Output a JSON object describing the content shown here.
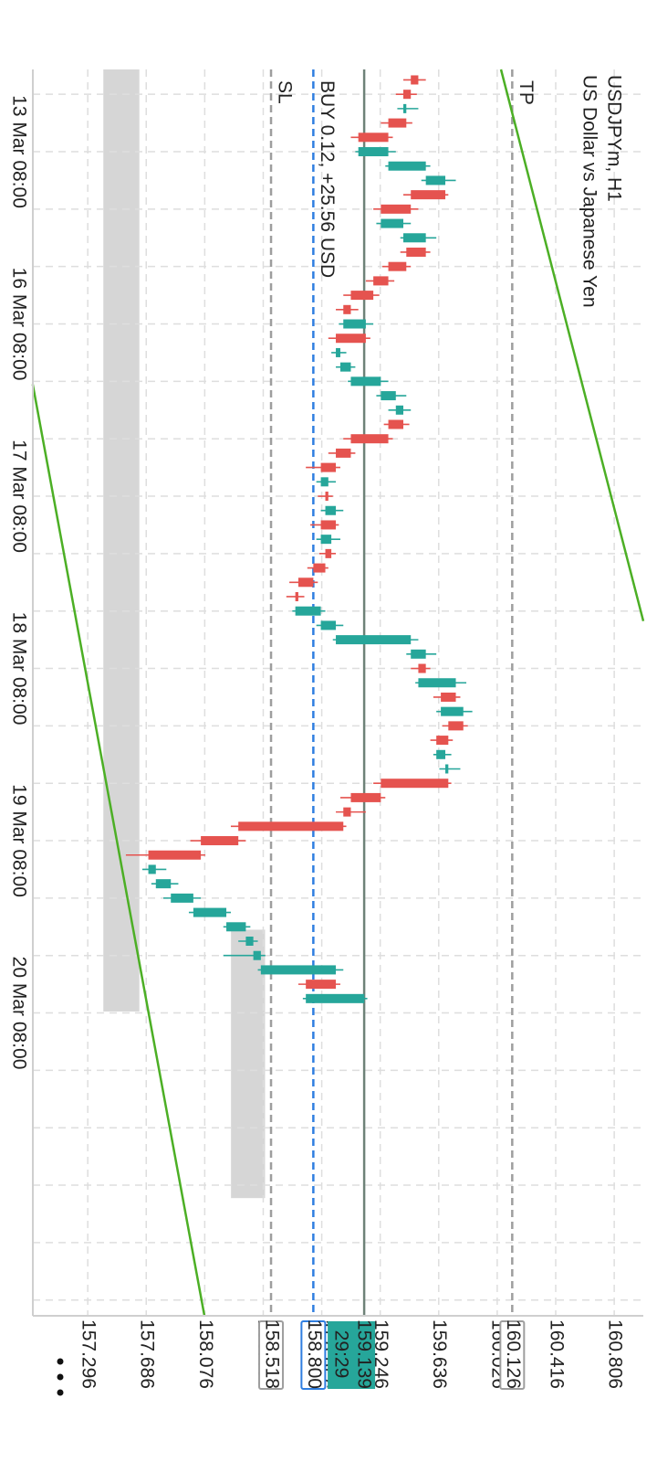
{
  "chart_data": {
    "type": "candlestick",
    "symbol": "USDJPYm, H1",
    "description": "US Dollar vs Japanese Yen",
    "categories": [
      null,
      null,
      null,
      null,
      null,
      null,
      null,
      null,
      null,
      null,
      null,
      null,
      null,
      null,
      null,
      null,
      null,
      null,
      null,
      null,
      null,
      null,
      null,
      null,
      null,
      null,
      null,
      null,
      null,
      null,
      null,
      null,
      null,
      null,
      null,
      null,
      null,
      null,
      null,
      null,
      null,
      null,
      null,
      null,
      null,
      null,
      null,
      null,
      null,
      null,
      null,
      null,
      null,
      null,
      null,
      null,
      null,
      null,
      null,
      null,
      null,
      null,
      null,
      null,
      null
    ],
    "open": [
      159.5,
      159.45,
      159.4,
      159.42,
      159.3,
      159.1,
      159.3,
      159.55,
      159.68,
      159.45,
      159.25,
      159.4,
      159.55,
      159.42,
      159.3,
      159.2,
      159.05,
      159.0,
      159.15,
      158.95,
      158.98,
      159.05,
      159.25,
      159.35,
      159.4,
      159.3,
      159.05,
      158.95,
      158.85,
      158.9,
      158.88,
      158.95,
      158.85,
      158.92,
      158.88,
      158.8,
      158.7,
      158.68,
      158.85,
      158.95,
      159.45,
      159.55,
      159.5,
      159.75,
      159.65,
      159.8,
      159.7,
      159.62,
      159.68,
      159.7,
      159.25,
      159.05,
      159.0,
      158.3,
      158.05,
      157.7,
      157.75,
      157.85,
      158.0,
      158.22,
      158.35,
      158.4,
      158.45,
      158.95,
      158.75
    ],
    "high": [
      159.55,
      159.49,
      159.5,
      159.46,
      159.33,
      159.35,
      159.58,
      159.75,
      159.7,
      159.5,
      159.45,
      159.62,
      159.58,
      159.45,
      159.34,
      159.24,
      159.1,
      159.2,
      159.18,
      159.02,
      159.08,
      159.3,
      159.42,
      159.45,
      159.44,
      159.33,
      159.08,
      158.98,
      158.95,
      158.93,
      159.0,
      158.97,
      158.98,
      158.95,
      158.9,
      158.83,
      158.74,
      158.88,
      159.0,
      159.5,
      159.62,
      159.58,
      159.82,
      159.78,
      159.86,
      159.83,
      159.73,
      159.72,
      159.78,
      159.72,
      159.28,
      159.15,
      159.02,
      158.35,
      158.08,
      157.82,
      157.9,
      158.05,
      158.25,
      158.38,
      158.43,
      158.48,
      159.0,
      158.98,
      159.16
    ],
    "low": [
      159.4,
      159.35,
      159.36,
      159.25,
      159.05,
      159.08,
      159.28,
      159.52,
      159.4,
      159.2,
      159.22,
      159.38,
      159.38,
      159.26,
      159.15,
      159.0,
      158.95,
      158.97,
      158.9,
      158.92,
      158.95,
      159.03,
      159.22,
      159.3,
      159.27,
      159.0,
      158.9,
      158.75,
      158.82,
      158.83,
      158.85,
      158.78,
      158.82,
      158.84,
      158.76,
      158.64,
      158.62,
      158.66,
      158.82,
      158.93,
      159.42,
      159.45,
      159.48,
      159.6,
      159.62,
      159.66,
      159.58,
      159.6,
      159.64,
      159.2,
      158.98,
      158.95,
      158.25,
      157.98,
      157.55,
      157.66,
      157.72,
      157.8,
      157.97,
      158.2,
      158.3,
      158.2,
      158.43,
      158.7,
      158.73
    ],
    "close": [
      159.45,
      159.4,
      159.42,
      159.3,
      159.1,
      159.3,
      159.55,
      159.68,
      159.45,
      159.25,
      159.4,
      159.55,
      159.42,
      159.3,
      159.2,
      159.05,
      159.0,
      159.15,
      158.95,
      158.98,
      159.05,
      159.25,
      159.35,
      159.4,
      159.3,
      159.05,
      158.95,
      158.85,
      158.9,
      158.88,
      158.95,
      158.85,
      158.92,
      158.88,
      158.8,
      158.7,
      158.68,
      158.85,
      158.95,
      159.45,
      159.55,
      159.5,
      159.75,
      159.65,
      159.8,
      159.7,
      159.62,
      159.68,
      159.7,
      159.25,
      159.05,
      159.0,
      158.3,
      158.05,
      157.7,
      157.75,
      157.85,
      158.0,
      158.22,
      158.35,
      158.4,
      158.45,
      158.95,
      158.75,
      159.14
    ],
    "up_color": "#26a69a",
    "down_color": "#e5534f",
    "xlim": [
      -0.73,
      86.1
    ],
    "xticks": [
      {
        "value": 5,
        "label": "13 Mar 08:00"
      },
      {
        "value": 17,
        "label": "16 Mar 08:00"
      },
      {
        "value": 29,
        "label": "17 Mar 08:00"
      },
      {
        "value": 41,
        "label": "18 Mar 08:00"
      },
      {
        "value": 53,
        "label": "19 Mar 08:00"
      },
      {
        "value": 65,
        "label": "20 Mar 08:00"
      }
    ],
    "xgrid": [
      1,
      5,
      9,
      13,
      17,
      21,
      25,
      29,
      33,
      37,
      41,
      45,
      49,
      53,
      57,
      61,
      65,
      69,
      73,
      77,
      81,
      85
    ],
    "ylim": [
      156.93,
      161.0
    ],
    "yticks": [
      157.296,
      157.686,
      158.076,
      158.466,
      158.856,
      159.246,
      159.636,
      160.026,
      160.416,
      160.806
    ],
    "grid": true,
    "levels": [
      {
        "name": "TP",
        "value": 160.126,
        "color": "#9e9e9e"
      },
      {
        "name": "SL",
        "value": 158.518,
        "color": "#9e9e9e"
      },
      {
        "name": "BUY 0.12,  +25.56 USD",
        "value": 158.8,
        "value_label": "158.800",
        "color": "#2f7ee0"
      }
    ],
    "current": {
      "value": 159.139,
      "timer": "29:29",
      "color": "#26a69a",
      "line_color": "#6e8278"
    },
    "trendlines": [
      {
        "color": "#4caf25",
        "points": [
          [
            -0.73,
            160.051
          ],
          [
            37.7,
            161.0
          ]
        ]
      },
      {
        "color": "#4caf25",
        "points": [
          [
            21.2,
            156.929
          ],
          [
            86.1,
            158.074
          ]
        ]
      }
    ],
    "zones": [
      {
        "color": "#d6d6d6",
        "from": -0.73,
        "to": 64.9,
        "low": 157.4,
        "high": 157.64
      },
      {
        "color": "#d6d6d6",
        "from": 59.2,
        "to": 77.9,
        "low": 158.251,
        "high": 158.478
      }
    ]
  }
}
